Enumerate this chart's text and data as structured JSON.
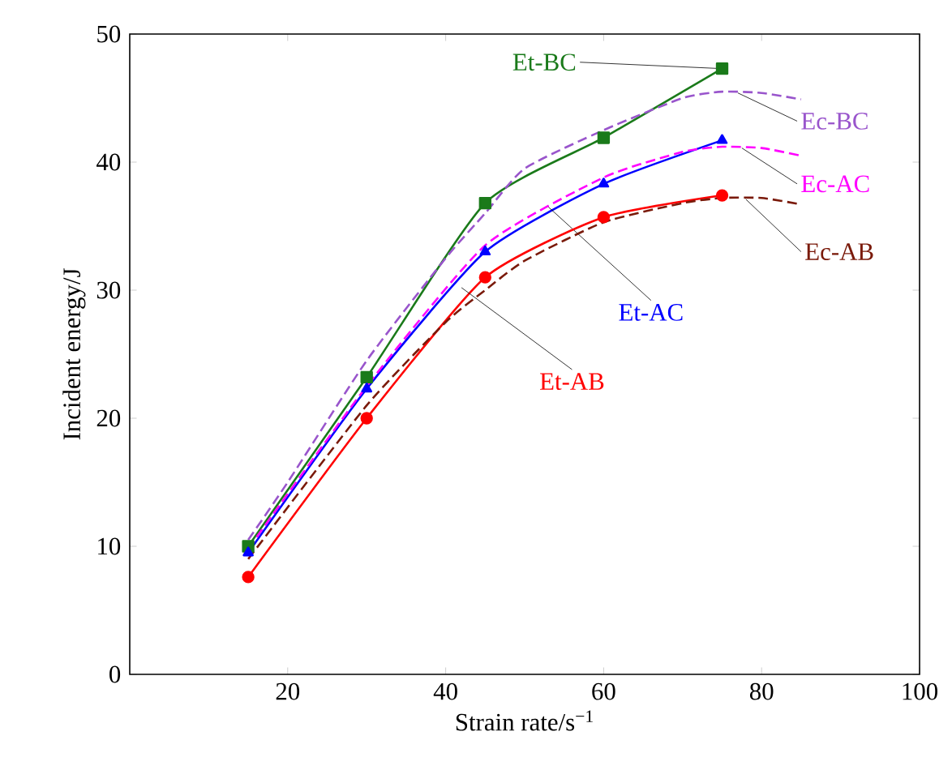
{
  "chart_data": {
    "type": "line",
    "xlabel": "Strain rate/s$^{−1}$",
    "ylabel": "Incident energy/J",
    "xlim": [
      0,
      100
    ],
    "xticks": [
      20,
      40,
      60,
      80,
      100
    ],
    "ylim": [
      0,
      50
    ],
    "yticks": [
      0,
      10,
      20,
      30,
      40,
      50
    ],
    "grid": false,
    "legend": false,
    "series": [
      {
        "name": "Et-BC",
        "color": "#1a7a1a",
        "marker": "square",
        "line_style": "solid",
        "x": [
          15,
          30,
          45,
          60,
          75
        ],
        "values": [
          10,
          23.2,
          36.8,
          41.9,
          47.3
        ]
      },
      {
        "name": "Et-AC",
        "color": "#0000ff",
        "marker": "triangle",
        "line_style": "solid",
        "x": [
          15,
          30,
          45,
          60,
          75
        ],
        "values": [
          9.5,
          22.3,
          33,
          38.3,
          41.7
        ]
      },
      {
        "name": "Et-AB",
        "color": "#ff0000",
        "marker": "circle",
        "line_style": "solid",
        "x": [
          15,
          30,
          45,
          60,
          75
        ],
        "values": [
          7.6,
          20,
          31,
          35.7,
          37.4
        ]
      },
      {
        "name": "Ec-BC",
        "color": "#9955cc",
        "marker": "none",
        "line_style": "dashed",
        "x": [
          15,
          20,
          30,
          40,
          45,
          50,
          60,
          70,
          75,
          80,
          85
        ],
        "values": [
          10.5,
          15,
          24.5,
          32.5,
          36,
          39.5,
          42.5,
          45,
          45.5,
          45.4,
          44.9
        ]
      },
      {
        "name": "Ec-AC",
        "color": "#ff00ff",
        "marker": "none",
        "line_style": "dashed",
        "x": [
          15,
          30,
          45,
          60,
          70,
          75,
          80,
          85
        ],
        "values": [
          9.8,
          22.5,
          33.5,
          38.8,
          40.8,
          41.2,
          41.1,
          40.5
        ]
      },
      {
        "name": "Ec-AB",
        "color": "#7a1a0a",
        "marker": "none",
        "line_style": "dashed",
        "x": [
          15,
          30,
          40,
          45,
          50,
          60,
          70,
          75,
          80,
          85
        ],
        "values": [
          9,
          21,
          27.5,
          30,
          32.3,
          35.3,
          36.8,
          37.2,
          37.2,
          36.7
        ]
      }
    ]
  }
}
